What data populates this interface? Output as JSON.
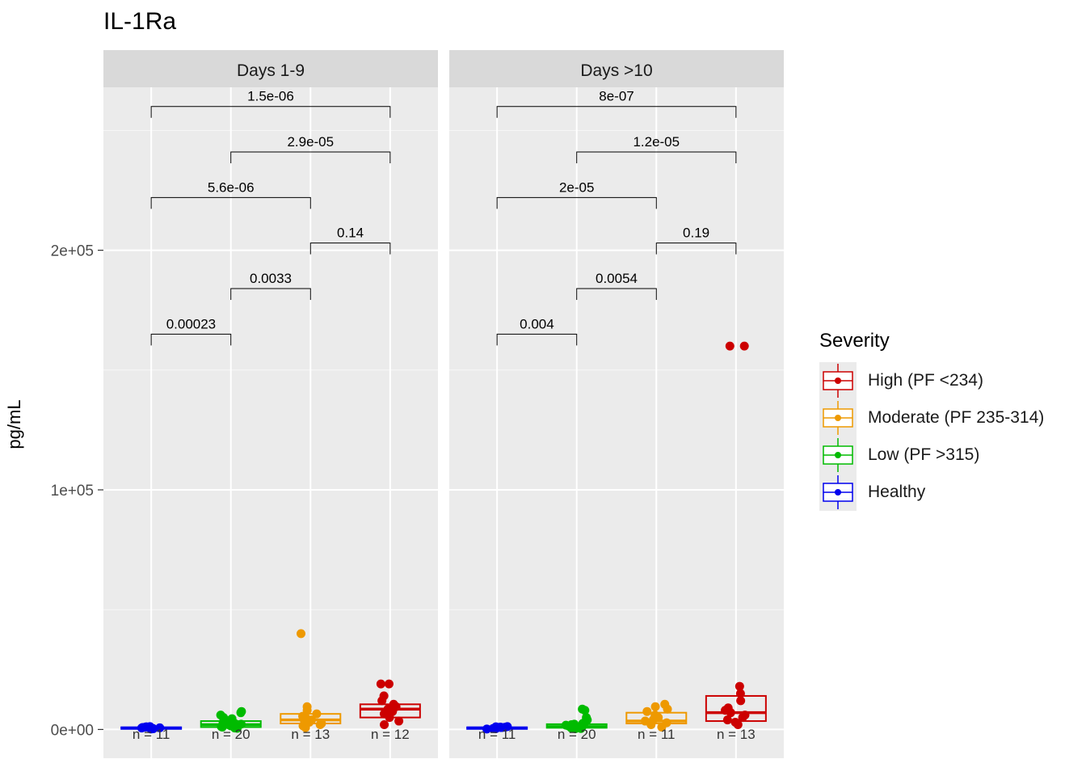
{
  "chart_data": {
    "type": "boxplot",
    "title": "IL-1Ra",
    "ylabel": "pg/mL",
    "xlabel": "",
    "ylim": [
      -12000,
      268000
    ],
    "yticks": [
      0,
      100000,
      200000
    ],
    "ytick_labels": [
      "0e+00",
      "1e+05",
      "2e+05"
    ],
    "grid": true,
    "legend_title": "Severity",
    "legend_position": "right",
    "groups": [
      {
        "name": "High (PF <234)",
        "color": "#cc0000"
      },
      {
        "name": "Moderate (PF 235-314)",
        "color": "#ee9900"
      },
      {
        "name": "Low (PF >315)",
        "color": "#00bb00"
      },
      {
        "name": "Healthy",
        "color": "#0000ee"
      }
    ],
    "x_order": [
      "Healthy",
      "Low (PF >315)",
      "Moderate (PF 235-314)",
      "High (PF <234)"
    ],
    "panels": [
      {
        "label": "Days 1-9",
        "boxes": [
          {
            "group": "Healthy",
            "n_label": "n = 11",
            "q1": 300,
            "median": 600,
            "q3": 900,
            "points": [
              200,
              500,
              800,
              1000,
              1200,
              400,
              600,
              700,
              300,
              900,
              1100
            ]
          },
          {
            "group": "Low (PF >315)",
            "n_label": "n = 20",
            "q1": 1000,
            "median": 2000,
            "q3": 3500,
            "points": [
              500,
              800,
              1200,
              1500,
              2000,
              2500,
              3000,
              3500,
              4000,
              5000,
              6000,
              7000,
              7500,
              1000,
              1800,
              2200,
              2800,
              3200,
              4500,
              600
            ]
          },
          {
            "group": "Moderate (PF 235-314)",
            "n_label": "n = 13",
            "q1": 2500,
            "median": 4000,
            "q3": 6500,
            "points": [
              800,
              1500,
              2500,
              3000,
              3500,
              4000,
              4500,
              5500,
              6500,
              8000,
              9500,
              40000,
              2000
            ]
          },
          {
            "group": "High (PF <234)",
            "n_label": "n = 12",
            "q1": 5000,
            "median": 8500,
            "q3": 10500,
            "points": [
              2000,
              3500,
              5000,
              6500,
              7500,
              8500,
              9500,
              10500,
              12000,
              14000,
              19000,
              19000
            ]
          }
        ],
        "comparisons": [
          {
            "from": "Healthy",
            "to": "High (PF <234)",
            "p": "1.5e-06",
            "y": 260000
          },
          {
            "from": "Low (PF >315)",
            "to": "High (PF <234)",
            "p": "2.9e-05",
            "y": 241000
          },
          {
            "from": "Healthy",
            "to": "Moderate (PF 235-314)",
            "p": "5.6e-06",
            "y": 222000
          },
          {
            "from": "Moderate (PF 235-314)",
            "to": "High (PF <234)",
            "p": "0.14",
            "y": 203000
          },
          {
            "from": "Low (PF >315)",
            "to": "Moderate (PF 235-314)",
            "p": "0.0033",
            "y": 184000
          },
          {
            "from": "Healthy",
            "to": "Low (PF >315)",
            "p": "0.00023",
            "y": 165000
          }
        ]
      },
      {
        "label": "Days >10",
        "boxes": [
          {
            "group": "Healthy",
            "n_label": "n = 11",
            "q1": 300,
            "median": 600,
            "q3": 900,
            "points": [
              200,
              500,
              800,
              1000,
              1200,
              400,
              600,
              700,
              300,
              900,
              1100
            ]
          },
          {
            "group": "Low (PF >315)",
            "n_label": "n = 20",
            "q1": 700,
            "median": 1200,
            "q3": 2200,
            "points": [
              300,
              600,
              900,
              1200,
              1500,
              2000,
              2500,
              3000,
              4000,
              5000,
              8000,
              8500,
              800,
              1000,
              1800,
              700,
              500,
              1400,
              2200,
              400
            ]
          },
          {
            "group": "Moderate (PF 235-314)",
            "n_label": "n = 11",
            "q1": 2500,
            "median": 3500,
            "q3": 7000,
            "points": [
              1000,
              2000,
              2800,
              3500,
              4000,
              5000,
              6000,
              7500,
              8500,
              9500,
              10500
            ]
          },
          {
            "group": "High (PF <234)",
            "n_label": "n = 13",
            "q1": 3500,
            "median": 7000,
            "q3": 14000,
            "points": [
              2000,
              3000,
              4000,
              5000,
              6000,
              7000,
              8000,
              9000,
              12000,
              15000,
              18000,
              160000,
              160000
            ]
          }
        ],
        "comparisons": [
          {
            "from": "Healthy",
            "to": "High (PF <234)",
            "p": "8e-07",
            "y": 260000
          },
          {
            "from": "Low (PF >315)",
            "to": "High (PF <234)",
            "p": "1.2e-05",
            "y": 241000
          },
          {
            "from": "Healthy",
            "to": "Moderate (PF 235-314)",
            "p": "2e-05",
            "y": 222000
          },
          {
            "from": "Moderate (PF 235-314)",
            "to": "High (PF <234)",
            "p": "0.19",
            "y": 203000
          },
          {
            "from": "Low (PF >315)",
            "to": "Moderate (PF 235-314)",
            "p": "0.0054",
            "y": 184000
          },
          {
            "from": "Healthy",
            "to": "Low (PF >315)",
            "p": "0.004",
            "y": 165000
          }
        ]
      }
    ]
  }
}
